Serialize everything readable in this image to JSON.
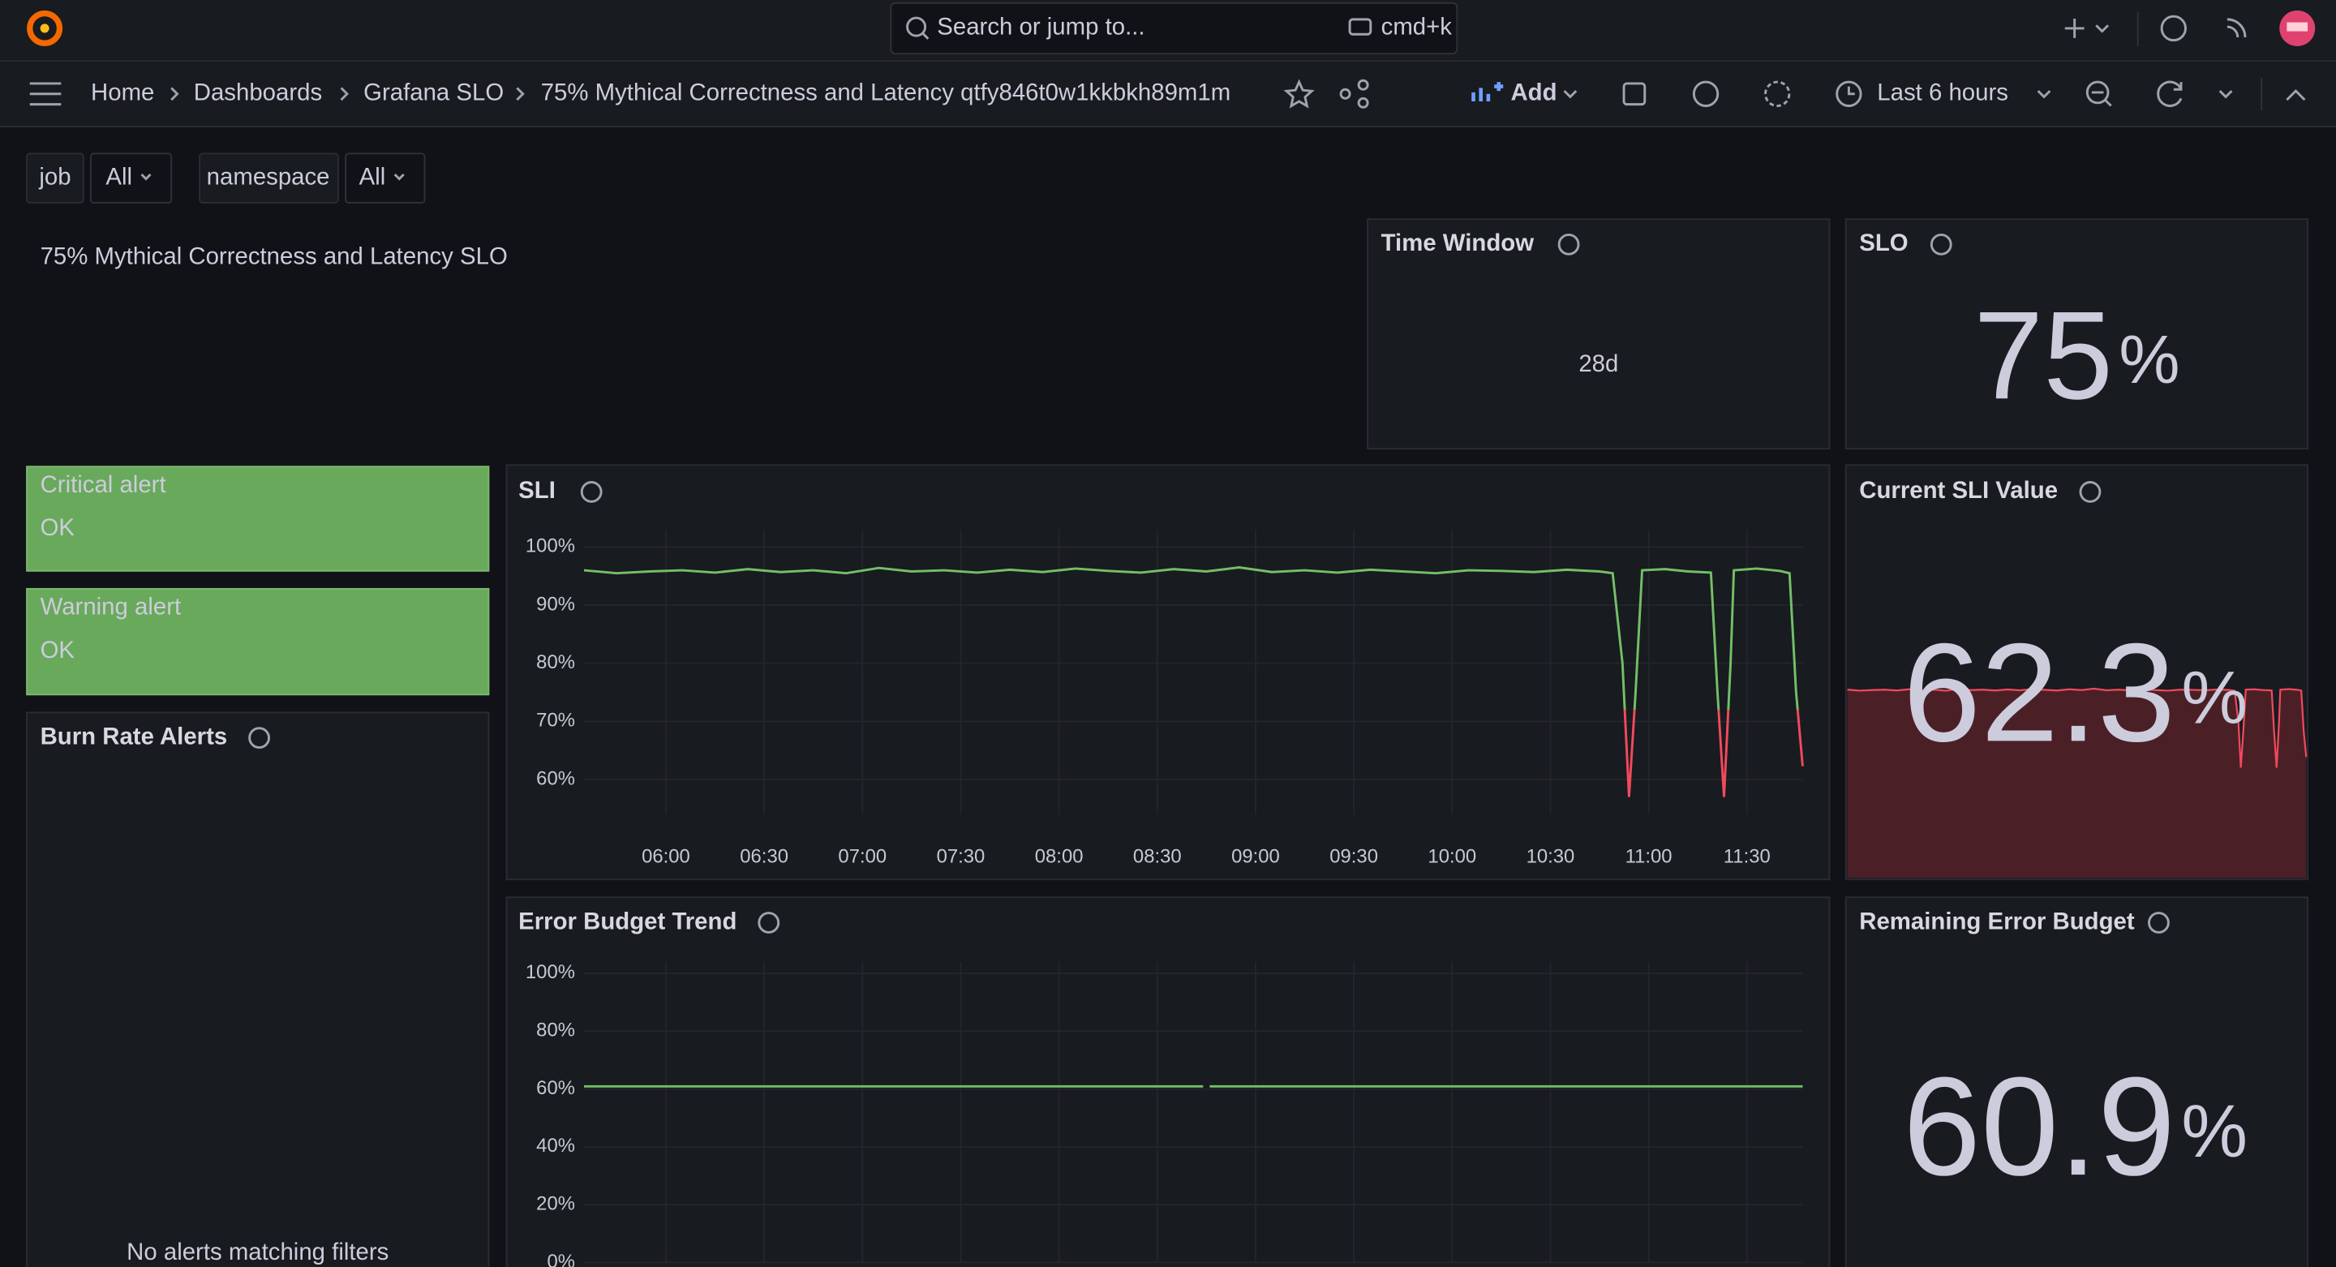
{
  "topbar": {
    "search_placeholder": "Search or jump to...",
    "shortcut": "cmd+k"
  },
  "breadcrumbs": [
    "Home",
    "Dashboards",
    "Grafana SLO",
    "75% Mythical Correctness and Latency qtfy846t0w1kkbkh89m1m"
  ],
  "toolbar": {
    "add": "Add",
    "time_range": "Last 6 hours"
  },
  "variables": [
    {
      "label": "job",
      "value": "All"
    },
    {
      "label": "namespace",
      "value": "All"
    }
  ],
  "dashboard_title": "75% Mythical Correctness and Latency SLO",
  "time_window": {
    "title": "Time Window",
    "value": "28d"
  },
  "slo": {
    "title": "SLO",
    "value": "75",
    "unit": "%"
  },
  "alerts": [
    {
      "label": "Critical alert",
      "status": "OK"
    },
    {
      "label": "Warning alert",
      "status": "OK"
    }
  ],
  "burn_rate": {
    "title": "Burn Rate Alerts",
    "message": "No alerts matching filters"
  },
  "sli_chart": {
    "type": "line",
    "title": "SLI",
    "x": [
      "05:35",
      "05:45",
      "05:55",
      "06:05",
      "06:15",
      "06:25",
      "06:35",
      "06:45",
      "06:55",
      "07:05",
      "07:15",
      "07:25",
      "07:35",
      "07:45",
      "07:55",
      "08:05",
      "08:15",
      "08:25",
      "08:35",
      "08:45",
      "08:55",
      "09:05",
      "09:15",
      "09:25",
      "09:35",
      "09:45",
      "09:55",
      "10:05",
      "10:15",
      "10:25",
      "10:35",
      "10:45",
      "10:49",
      "10:52",
      "10:54",
      "10:56",
      "10:58",
      "11:05",
      "11:12",
      "11:19",
      "11:21",
      "11:23",
      "11:25",
      "11:26",
      "11:33",
      "11:40",
      "11:43",
      "11:45",
      "11:47"
    ],
    "values": [
      96,
      95.5,
      95.8,
      96,
      95.6,
      96.2,
      95.7,
      96,
      95.5,
      96.4,
      95.8,
      96,
      95.6,
      96.1,
      95.7,
      96.3,
      95.9,
      95.6,
      96.2,
      95.8,
      96.5,
      95.7,
      96,
      95.6,
      96.1,
      95.8,
      95.5,
      96,
      95.9,
      95.7,
      96.1,
      95.8,
      95.5,
      80,
      57,
      75,
      96,
      96.2,
      95.8,
      95.6,
      75,
      57,
      80,
      96,
      96.3,
      95.9,
      95.5,
      75,
      62.3
    ],
    "xlim": [
      "05:35",
      "11:47"
    ],
    "xticks": [
      "06:00",
      "06:30",
      "07:00",
      "07:30",
      "08:00",
      "08:30",
      "09:00",
      "09:30",
      "10:00",
      "10:30",
      "11:00",
      "11:30"
    ],
    "ylim": [
      54,
      103
    ],
    "yticks": [
      {
        "value": 60,
        "label": "60%"
      },
      {
        "value": 70,
        "label": "70%"
      },
      {
        "value": 80,
        "label": "80%"
      },
      {
        "value": 90,
        "label": "90%"
      },
      {
        "value": 100,
        "label": "100%"
      }
    ],
    "color": "#73bf69",
    "threshold": 72,
    "threshold_color": "#f2495c",
    "grid": true
  },
  "current_sli": {
    "title": "Current SLI Value",
    "value": "62.3",
    "unit": "%"
  },
  "error_budget_chart": {
    "type": "line",
    "title": "Error Budget Trend",
    "x": [
      "05:35",
      "08:44",
      "08:45",
      "08:46",
      "11:47"
    ],
    "values": [
      60.9,
      60.9,
      null,
      60.9,
      60.9
    ],
    "xlim": [
      "05:35",
      "11:47"
    ],
    "ylim": [
      0,
      104
    ],
    "yticks": [
      {
        "value": 0,
        "label": "0%"
      },
      {
        "value": 20,
        "label": "20%"
      },
      {
        "value": 40,
        "label": "40%"
      },
      {
        "value": 60,
        "label": "60%"
      },
      {
        "value": 80,
        "label": "80%"
      },
      {
        "value": 100,
        "label": "100%"
      }
    ],
    "color": "#73bf69",
    "grid": true
  },
  "remaining_budget": {
    "title": "Remaining Error Budget",
    "value": "60.9",
    "unit": "%"
  }
}
